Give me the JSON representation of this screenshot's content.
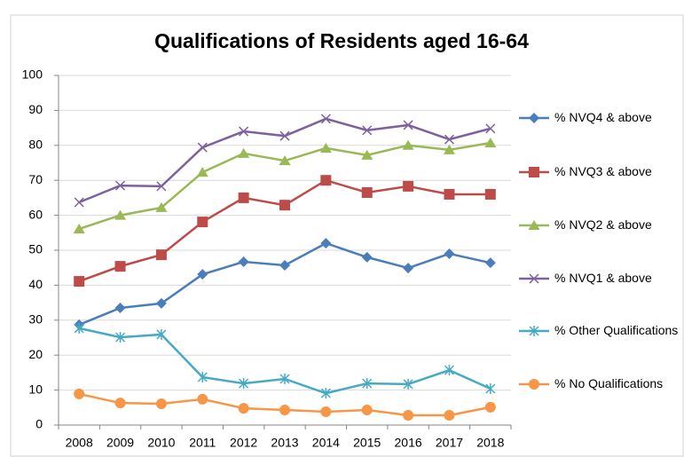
{
  "chart_data": {
    "type": "line",
    "title": "Qualifications of Residents aged 16-64",
    "categories": [
      "2008",
      "2009",
      "2010",
      "2011",
      "2012",
      "2013",
      "2014",
      "2015",
      "2016",
      "2017",
      "2018"
    ],
    "ylim": [
      0,
      100
    ],
    "yticks": [
      0,
      10,
      20,
      30,
      40,
      50,
      60,
      70,
      80,
      90,
      100
    ],
    "grid": true,
    "legend": "right",
    "series": [
      {
        "name": "% NVQ4 & above",
        "color": "#4a7ebb",
        "marker": "diamond",
        "values": [
          28.7,
          33.5,
          34.8,
          43.1,
          46.7,
          45.7,
          52,
          48,
          44.9,
          49,
          46.4
        ]
      },
      {
        "name": "% NVQ3 & above",
        "color": "#be4b48",
        "marker": "square",
        "values": [
          41.1,
          45.4,
          48.7,
          58.1,
          65,
          62.9,
          70,
          66.5,
          68.3,
          66,
          66
        ]
      },
      {
        "name": "% NVQ2 & above",
        "color": "#98b954",
        "marker": "triangle",
        "values": [
          56.1,
          60,
          62.2,
          72.3,
          77.7,
          75.6,
          79.2,
          77.2,
          80,
          78.7,
          80.7
        ]
      },
      {
        "name": "% NVQ1 & above",
        "color": "#7d60a0",
        "marker": "x",
        "values": [
          63.7,
          68.5,
          68.3,
          79.4,
          84,
          82.7,
          87.6,
          84.3,
          85.8,
          81.7,
          84.8
        ]
      },
      {
        "name": "% Other Qualifications",
        "color": "#46aac5",
        "marker": "star",
        "values": [
          27.7,
          25.1,
          25.9,
          13.7,
          11.9,
          13.2,
          9.1,
          11.9,
          11.7,
          15.7,
          10.4
        ]
      },
      {
        "name": "% No Qualifications",
        "color": "#f79646",
        "marker": "circle",
        "values": [
          8.9,
          6.3,
          6.1,
          7.4,
          4.8,
          4.3,
          3.8,
          4.3,
          2.8,
          2.8,
          5.1
        ]
      }
    ]
  }
}
